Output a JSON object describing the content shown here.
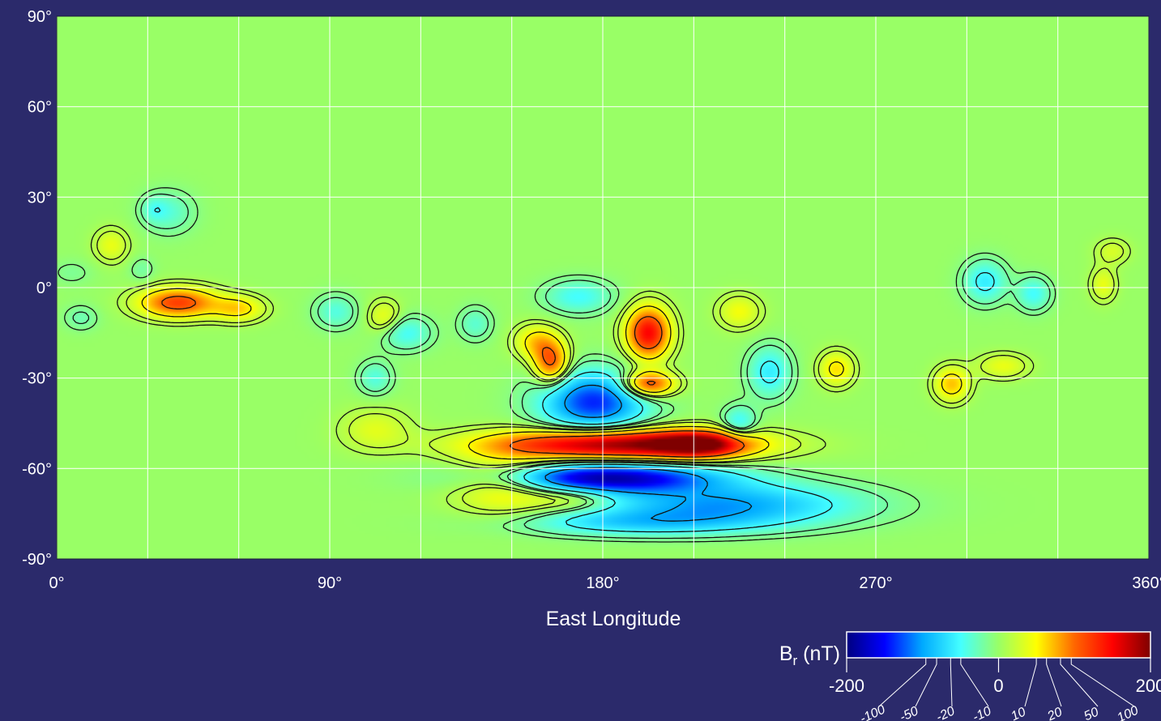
{
  "chart_data": {
    "type": "heatmap",
    "title": "",
    "xlabel": "East Longitude",
    "ylabel": "",
    "xlim": [
      0,
      360
    ],
    "ylim": [
      -90,
      90
    ],
    "x_ticks": [
      0,
      90,
      180,
      270,
      360
    ],
    "x_tick_labels": [
      "0°",
      "90°",
      "180°",
      "270°",
      "360°"
    ],
    "y_ticks": [
      90,
      60,
      30,
      0,
      -30,
      -60,
      -90
    ],
    "y_tick_labels": [
      "90°",
      "60°",
      "30°",
      "0°",
      "-30°",
      "-60°",
      "-90°"
    ],
    "grid": true,
    "grid_x": [
      0,
      30,
      60,
      90,
      120,
      150,
      180,
      210,
      240,
      270,
      300,
      330,
      360
    ],
    "grid_y": [
      -90,
      -60,
      -30,
      0,
      30,
      60,
      90
    ],
    "contour_levels": [
      -100,
      -50,
      -20,
      -10,
      10,
      20,
      50,
      100
    ],
    "colorbar": {
      "label_main": "B",
      "label_sub": "r",
      "label_unit": " (nT)",
      "min": -200,
      "max": 200,
      "major_labels": [
        "-200",
        "0",
        "200"
      ],
      "major_values": [
        -200,
        0,
        200
      ],
      "minor_labels": [
        "-100",
        "-50",
        "-20",
        "-10",
        "10",
        "20",
        "50",
        "100"
      ],
      "minor_values": [
        -100,
        -50,
        -20,
        -10,
        10,
        20,
        50,
        100
      ],
      "colors": [
        "#00007f",
        "#0000ff",
        "#00aaff",
        "#44ffff",
        "#99ff66",
        "#ffff00",
        "#ff6600",
        "#ff0000",
        "#7f0000"
      ]
    },
    "background_color": "#2b2a6b",
    "field_color": "#8ef07a",
    "anomalies": [
      {
        "lon": 40,
        "lat": -5,
        "value": 120,
        "dlon": 9,
        "dlat": 3.5
      },
      {
        "lon": 60,
        "lat": -7,
        "value": 60,
        "dlon": 6,
        "dlat": 3
      },
      {
        "lon": 18,
        "lat": 14,
        "value": 40,
        "dlon": 4,
        "dlat": 4
      },
      {
        "lon": 37,
        "lat": 25,
        "value": -35,
        "dlon": 6,
        "dlat": 5
      },
      {
        "lon": 32,
        "lat": 26,
        "value": -25,
        "dlon": 3,
        "dlat": 3
      },
      {
        "lon": 28,
        "lat": 6,
        "value": -20,
        "dlon": 3,
        "dlat": 3
      },
      {
        "lon": 5,
        "lat": 5,
        "value": -15,
        "dlon": 5,
        "dlat": 3
      },
      {
        "lon": 92,
        "lat": -8,
        "value": -40,
        "dlon": 5,
        "dlat": 4
      },
      {
        "lon": 108,
        "lat": -10,
        "value": 45,
        "dlon": 4,
        "dlat": 4
      },
      {
        "lon": 115,
        "lat": -15,
        "value": -50,
        "dlon": 6,
        "dlat": 4
      },
      {
        "lon": 105,
        "lat": -30,
        "value": -40,
        "dlon": 4,
        "dlat": 4
      },
      {
        "lon": 105,
        "lat": -47,
        "value": 35,
        "dlon": 8,
        "dlat": 5
      },
      {
        "lon": 138,
        "lat": -12,
        "value": -35,
        "dlon": 4,
        "dlat": 4
      },
      {
        "lon": 163,
        "lat": -25,
        "value": 110,
        "dlon": 4,
        "dlat": 5
      },
      {
        "lon": 158,
        "lat": -18,
        "value": 60,
        "dlon": 5,
        "dlat": 4
      },
      {
        "lon": 172,
        "lat": -3,
        "value": -50,
        "dlon": 8,
        "dlat": 4
      },
      {
        "lon": 195,
        "lat": -15,
        "value": 150,
        "dlon": 5,
        "dlat": 6
      },
      {
        "lon": 195,
        "lat": -32,
        "value": 130,
        "dlon": 6,
        "dlat": 3
      },
      {
        "lon": 225,
        "lat": -8,
        "value": 45,
        "dlon": 5,
        "dlat": 4
      },
      {
        "lon": 235,
        "lat": -28,
        "value": -60,
        "dlon": 5,
        "dlat": 6
      },
      {
        "lon": 225,
        "lat": -45,
        "value": -55,
        "dlon": 4,
        "dlat": 4
      },
      {
        "lon": 177,
        "lat": -38,
        "value": -140,
        "dlon": 12,
        "dlat": 7
      },
      {
        "lon": 185,
        "lat": -52,
        "value": 200,
        "dlon": 28,
        "dlat": 3.5
      },
      {
        "lon": 212,
        "lat": -52,
        "value": 130,
        "dlon": 10,
        "dlat": 3
      },
      {
        "lon": 180,
        "lat": -63,
        "value": -180,
        "dlon": 26,
        "dlat": 3.5
      },
      {
        "lon": 220,
        "lat": -72,
        "value": -100,
        "dlon": 30,
        "dlat": 5
      },
      {
        "lon": 190,
        "lat": -78,
        "value": -60,
        "dlon": 28,
        "dlat": 3
      },
      {
        "lon": 148,
        "lat": -65,
        "value": 70,
        "dlon": 12,
        "dlat": 7
      },
      {
        "lon": 170,
        "lat": -70,
        "value": 40,
        "dlon": 10,
        "dlat": 3
      },
      {
        "lon": 257,
        "lat": -27,
        "value": 60,
        "dlon": 4,
        "dlat": 4
      },
      {
        "lon": 295,
        "lat": -32,
        "value": 70,
        "dlon": 4,
        "dlat": 4
      },
      {
        "lon": 312,
        "lat": -26,
        "value": 40,
        "dlon": 6,
        "dlat": 3
      },
      {
        "lon": 306,
        "lat": 2,
        "value": -60,
        "dlon": 5,
        "dlat": 5
      },
      {
        "lon": 322,
        "lat": -2,
        "value": -50,
        "dlon": 4,
        "dlat": 4
      },
      {
        "lon": 345,
        "lat": 1,
        "value": 40,
        "dlon": 3,
        "dlat": 4
      },
      {
        "lon": 348,
        "lat": 12,
        "value": 30,
        "dlon": 4,
        "dlat": 3
      },
      {
        "lon": 8,
        "lat": -10,
        "value": -25,
        "dlon": 4,
        "dlat": 3
      }
    ]
  }
}
